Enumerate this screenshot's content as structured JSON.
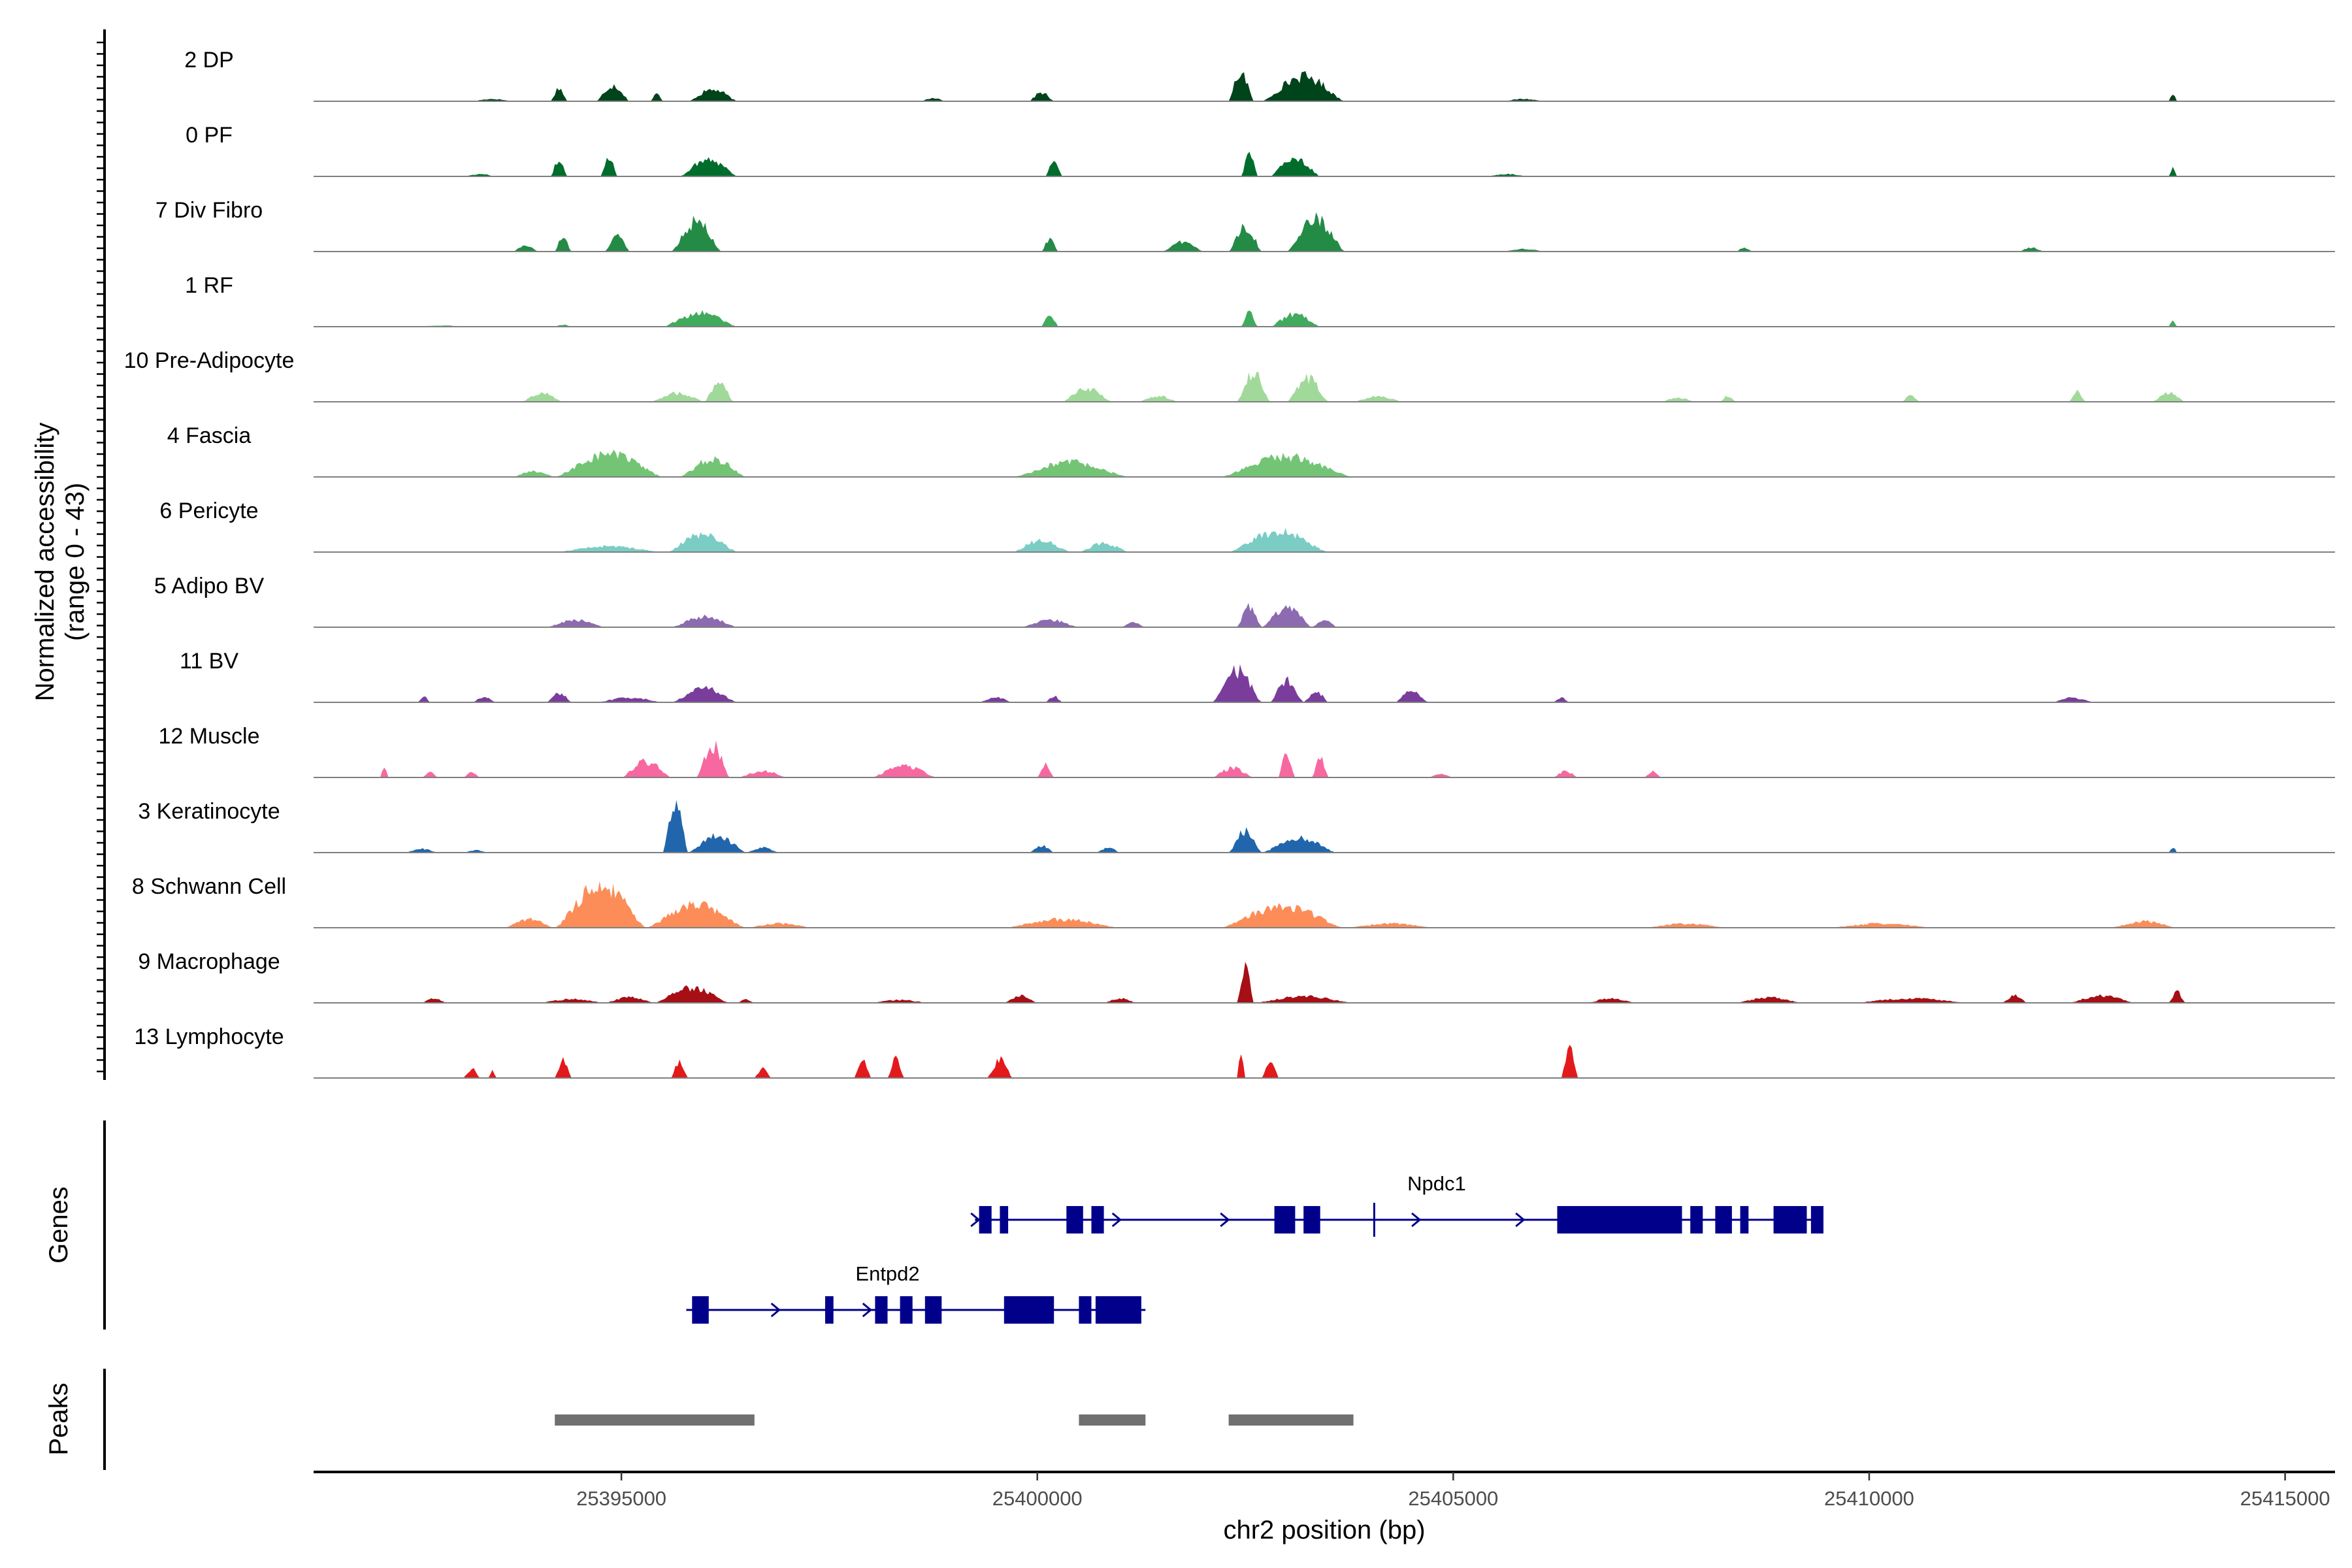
{
  "chart_data": {
    "type": "area",
    "title": "",
    "chromosome": "chr2",
    "xlabel": "chr2 position (bp)",
    "ylabel": "Normalized accessibility",
    "ylabel_sub": "(range 0 - 43)",
    "y_range": [
      0,
      43
    ],
    "xlim": [
      25391300,
      25415600
    ],
    "x_ticks": [
      25395000,
      25400000,
      25405000,
      25410000,
      25415000
    ],
    "x_tick_labels": [
      "25395000",
      "25400000",
      "25405000",
      "25410000",
      "25415000"
    ],
    "series": [
      {
        "name": "2 DP",
        "color": "#00441b",
        "scale": 0.55,
        "peaks": [
          [
            25393200,
            25393700,
            0.08
          ],
          [
            25394150,
            25394350,
            0.45
          ],
          [
            25394700,
            25395100,
            0.55
          ],
          [
            25395350,
            25395500,
            0.25
          ],
          [
            25395800,
            25396400,
            0.4
          ],
          [
            25398600,
            25398900,
            0.12
          ],
          [
            25399900,
            25400200,
            0.3
          ],
          [
            25402300,
            25402600,
            1.0
          ],
          [
            25402700,
            25403700,
            0.85
          ],
          [
            25405600,
            25406100,
            0.08
          ],
          [
            25413600,
            25413700,
            0.3
          ]
        ]
      },
      {
        "name": "0 PF",
        "color": "#006d2c",
        "scale": 0.55,
        "peaks": [
          [
            25393100,
            25393500,
            0.08
          ],
          [
            25394150,
            25394350,
            0.55
          ],
          [
            25394750,
            25394950,
            0.7
          ],
          [
            25395700,
            25396400,
            0.6
          ],
          [
            25400100,
            25400300,
            0.55
          ],
          [
            25402450,
            25402650,
            0.75
          ],
          [
            25402800,
            25403400,
            0.65
          ],
          [
            25405400,
            25405900,
            0.08
          ],
          [
            25413600,
            25413700,
            0.28
          ]
        ]
      },
      {
        "name": "7 Div Fibro",
        "color": "#238b45",
        "scale": 0.6,
        "peaks": [
          [
            25393700,
            25394000,
            0.2
          ],
          [
            25394200,
            25394400,
            0.45
          ],
          [
            25394800,
            25395100,
            0.5
          ],
          [
            25395600,
            25396200,
            0.95
          ],
          [
            25400050,
            25400250,
            0.4
          ],
          [
            25401500,
            25402000,
            0.3
          ],
          [
            25402300,
            25402700,
            0.8
          ],
          [
            25403000,
            25403700,
            1.0
          ],
          [
            25405600,
            25406100,
            0.08
          ],
          [
            25408400,
            25408600,
            0.12
          ],
          [
            25411800,
            25412100,
            0.12
          ]
        ]
      },
      {
        "name": "1 RF",
        "color": "#41ab5d",
        "scale": 0.4,
        "peaks": [
          [
            25392500,
            25393200,
            0.05
          ],
          [
            25394200,
            25394400,
            0.1
          ],
          [
            25395500,
            25396400,
            0.65
          ],
          [
            25400050,
            25400250,
            0.6
          ],
          [
            25402450,
            25402650,
            0.65
          ],
          [
            25402800,
            25403400,
            0.6
          ],
          [
            25413600,
            25413700,
            0.25
          ]
        ]
      },
      {
        "name": "10 Pre-Adipocyte",
        "color": "#a1d99b",
        "scale": 0.55,
        "peaks": [
          [
            25393800,
            25394300,
            0.3
          ],
          [
            25395350,
            25396000,
            0.3
          ],
          [
            25396000,
            25396350,
            0.7
          ],
          [
            25400300,
            25400900,
            0.45
          ],
          [
            25401200,
            25401700,
            0.2
          ],
          [
            25402400,
            25402800,
            1.0
          ],
          [
            25403000,
            25403500,
            0.8
          ],
          [
            25403800,
            25404400,
            0.2
          ],
          [
            25407500,
            25407900,
            0.15
          ],
          [
            25408200,
            25408400,
            0.2
          ],
          [
            25410400,
            25410600,
            0.25
          ],
          [
            25412400,
            25412600,
            0.35
          ],
          [
            25413400,
            25413800,
            0.3
          ]
        ]
      },
      {
        "name": "4 Fascia",
        "color": "#74c476",
        "scale": 0.55,
        "peaks": [
          [
            25393700,
            25394200,
            0.2
          ],
          [
            25394200,
            25395500,
            0.8
          ],
          [
            25395700,
            25396500,
            0.6
          ],
          [
            25399700,
            25401100,
            0.5
          ],
          [
            25402200,
            25403800,
            0.7
          ]
        ]
      },
      {
        "name": "6 Pericyte",
        "color": "#7bccc4",
        "scale": 0.55,
        "peaks": [
          [
            25394200,
            25395500,
            0.2
          ],
          [
            25395550,
            25396400,
            0.6
          ],
          [
            25399700,
            25400400,
            0.4
          ],
          [
            25400500,
            25401100,
            0.3
          ],
          [
            25402300,
            25403500,
            0.7
          ]
        ]
      },
      {
        "name": "5 Adipo BV",
        "color": "#8c6bb1",
        "scale": 0.55,
        "peaks": [
          [
            25394100,
            25394800,
            0.25
          ],
          [
            25395600,
            25396400,
            0.35
          ],
          [
            25399800,
            25400500,
            0.25
          ],
          [
            25401000,
            25401300,
            0.15
          ],
          [
            25402400,
            25402700,
            0.7
          ],
          [
            25402700,
            25403300,
            0.65
          ],
          [
            25403300,
            25403600,
            0.25
          ]
        ]
      },
      {
        "name": "11 BV",
        "color": "#7a3d9c",
        "scale": 0.6,
        "peaks": [
          [
            25392550,
            25392700,
            0.2
          ],
          [
            25393200,
            25393500,
            0.15
          ],
          [
            25394100,
            25394400,
            0.3
          ],
          [
            25394700,
            25395500,
            0.15
          ],
          [
            25395600,
            25396400,
            0.45
          ],
          [
            25399300,
            25399700,
            0.15
          ],
          [
            25400100,
            25400300,
            0.2
          ],
          [
            25402100,
            25402700,
            1.0
          ],
          [
            25402800,
            25403200,
            0.7
          ],
          [
            25403200,
            25403500,
            0.35
          ],
          [
            25404300,
            25404700,
            0.35
          ],
          [
            25406200,
            25406400,
            0.15
          ],
          [
            25412200,
            25412700,
            0.15
          ]
        ]
      },
      {
        "name": "12 Muscle",
        "color": "#f768a1",
        "scale": 0.6,
        "peaks": [
          [
            25392100,
            25392200,
            0.35
          ],
          [
            25392600,
            25392800,
            0.15
          ],
          [
            25393100,
            25393300,
            0.15
          ],
          [
            25395000,
            25395600,
            0.5
          ],
          [
            25395900,
            25396300,
            1.0
          ],
          [
            25396400,
            25397000,
            0.2
          ],
          [
            25398000,
            25398800,
            0.35
          ],
          [
            25400000,
            25400200,
            0.4
          ],
          [
            25402100,
            25402600,
            0.3
          ],
          [
            25402900,
            25403100,
            0.8
          ],
          [
            25403300,
            25403500,
            0.6
          ],
          [
            25404700,
            25405000,
            0.1
          ],
          [
            25406200,
            25406500,
            0.2
          ],
          [
            25407300,
            25407500,
            0.2
          ]
        ]
      },
      {
        "name": "3 Keratinocyte",
        "color": "#2166ac",
        "scale": 0.9,
        "peaks": [
          [
            25392400,
            25392800,
            0.08
          ],
          [
            25393100,
            25393400,
            0.05
          ],
          [
            25395500,
            25395800,
            1.0
          ],
          [
            25395800,
            25396500,
            0.35
          ],
          [
            25396500,
            25396900,
            0.1
          ],
          [
            25399900,
            25400200,
            0.15
          ],
          [
            25400700,
            25401000,
            0.1
          ],
          [
            25402300,
            25402700,
            0.45
          ],
          [
            25402700,
            25403600,
            0.3
          ],
          [
            25413600,
            25413700,
            0.12
          ]
        ]
      },
      {
        "name": "8 Schwann Cell",
        "color": "#fc8d59",
        "scale": 0.8,
        "peaks": [
          [
            25393600,
            25394200,
            0.2
          ],
          [
            25394200,
            25395300,
            1.0
          ],
          [
            25395300,
            25396500,
            0.55
          ],
          [
            25396500,
            25397300,
            0.1
          ],
          [
            25399600,
            25401000,
            0.2
          ],
          [
            25402200,
            25403700,
            0.5
          ],
          [
            25403700,
            25404800,
            0.1
          ],
          [
            25407300,
            25408300,
            0.1
          ],
          [
            25409500,
            25410800,
            0.1
          ],
          [
            25412900,
            25413700,
            0.15
          ]
        ]
      },
      {
        "name": "9 Macrophage",
        "color": "#a50f15",
        "scale": 0.7,
        "peaks": [
          [
            25392600,
            25392900,
            0.12
          ],
          [
            25394000,
            25394800,
            0.1
          ],
          [
            25394800,
            25395400,
            0.15
          ],
          [
            25395400,
            25396300,
            0.4
          ],
          [
            25396400,
            25396600,
            0.1
          ],
          [
            25398000,
            25398700,
            0.08
          ],
          [
            25399600,
            25400000,
            0.2
          ],
          [
            25400800,
            25401200,
            0.12
          ],
          [
            25402400,
            25402600,
            1.0
          ],
          [
            25402600,
            25403800,
            0.18
          ],
          [
            25406600,
            25407200,
            0.12
          ],
          [
            25408400,
            25409200,
            0.15
          ],
          [
            25409800,
            25411200,
            0.12
          ],
          [
            25411600,
            25411900,
            0.2
          ],
          [
            25412400,
            25413200,
            0.2
          ],
          [
            25413600,
            25413800,
            0.3
          ]
        ]
      },
      {
        "name": "13 Lymphocyte",
        "color": "#e31a1c",
        "scale": 0.7,
        "peaks": [
          [
            25393100,
            25393300,
            0.25
          ],
          [
            25393400,
            25393500,
            0.2
          ],
          [
            25394200,
            25394400,
            0.5
          ],
          [
            25395600,
            25395800,
            0.45
          ],
          [
            25396600,
            25396800,
            0.25
          ],
          [
            25397800,
            25398000,
            0.5
          ],
          [
            25398200,
            25398400,
            0.5
          ],
          [
            25399400,
            25399700,
            0.5
          ],
          [
            25402400,
            25402500,
            0.7
          ],
          [
            25402700,
            25402900,
            0.5
          ],
          [
            25406300,
            25406500,
            0.8
          ]
        ]
      }
    ],
    "genes": [
      {
        "name": "Npdc1",
        "strand": "+",
        "start": 25399250,
        "end": 25409450,
        "exons": [
          [
            25399300,
            25399450
          ],
          [
            25399550,
            25399650
          ],
          [
            25400350,
            25400550
          ],
          [
            25400650,
            25400800
          ],
          [
            25402850,
            25403100
          ],
          [
            25403200,
            25403400
          ],
          [
            25406250,
            25407750
          ],
          [
            25407850,
            25408000
          ],
          [
            25408150,
            25408350
          ],
          [
            25408450,
            25408550
          ],
          [
            25408850,
            25409250
          ],
          [
            25409300,
            25409450
          ]
        ],
        "arrows": [
          25399250,
          25400950,
          25402250,
          25404550,
          25405800
        ],
        "tss": 25404050
      },
      {
        "name": "Entpd2",
        "strand": "+",
        "start": 25395780,
        "end": 25401300,
        "exons": [
          [
            25395850,
            25396050
          ],
          [
            25397450,
            25397550
          ],
          [
            25398050,
            25398200
          ],
          [
            25398350,
            25398500
          ],
          [
            25398650,
            25398850
          ],
          [
            25399600,
            25400200
          ],
          [
            25400500,
            25400650
          ],
          [
            25400700,
            25401250
          ]
        ],
        "arrows": [
          25396850,
          25397950,
          25398800
        ]
      }
    ],
    "peak_regions": [
      [
        25394200,
        25396600
      ],
      [
        25400500,
        25401300
      ],
      [
        25402300,
        25403800
      ]
    ],
    "legend": "none",
    "grid": false
  },
  "panels": {
    "genes_label": "Genes",
    "peaks_label": "Peaks"
  }
}
